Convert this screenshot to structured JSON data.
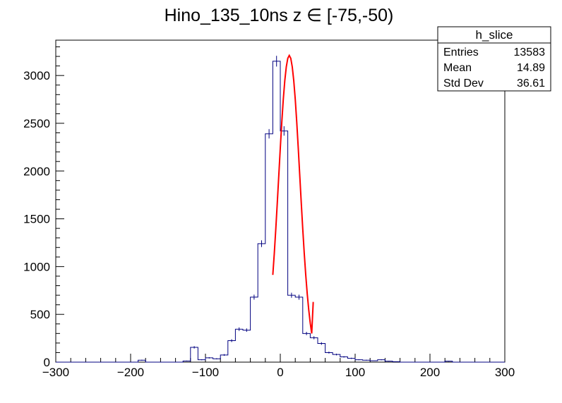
{
  "chart_data": {
    "type": "bar",
    "title": "Hino_135_10ns z  ∈ [-75,-50)",
    "xlim": [
      -300,
      300
    ],
    "ylim": [
      0,
      3370
    ],
    "x_ticks": [
      -300,
      -200,
      -100,
      0,
      100,
      200,
      300
    ],
    "y_ticks": [
      0,
      500,
      1000,
      1500,
      2000,
      2500,
      3000
    ],
    "bin_width": 10,
    "bin_edges_start": -300,
    "values": [
      0,
      0,
      0,
      0,
      0,
      0,
      0,
      0,
      0,
      0,
      0,
      20,
      0,
      0,
      0,
      0,
      0,
      12,
      155,
      25,
      45,
      35,
      75,
      225,
      345,
      335,
      680,
      1240,
      2390,
      3150,
      2420,
      700,
      680,
      300,
      255,
      195,
      100,
      80,
      55,
      40,
      25,
      20,
      15,
      25,
      10,
      5,
      0,
      0,
      0,
      0,
      0,
      0,
      10,
      0,
      0,
      0,
      0,
      0,
      0,
      0
    ],
    "fit": {
      "color": "#ff0000",
      "x": [
        -10,
        -8,
        -6,
        -4,
        -2,
        0,
        2,
        4,
        6,
        8,
        10,
        12,
        14,
        16,
        18,
        20,
        22,
        24,
        26,
        28,
        30,
        32,
        34,
        36,
        38,
        40,
        42,
        44
      ],
      "y": [
        913,
        1140,
        1395,
        1670,
        1955,
        2240,
        2510,
        2750,
        2945,
        3090,
        3180,
        3210,
        3180,
        3090,
        2945,
        2750,
        2510,
        2240,
        1955,
        1670,
        1395,
        1140,
        913,
        715,
        548,
        410,
        300,
        630
      ]
    },
    "stats": {
      "title": "h_slice",
      "rows": [
        {
          "label": "Entries",
          "value": "13583"
        },
        {
          "label": "Mean",
          "value": "14.89"
        },
        {
          "label": "Std Dev",
          "value": "36.61"
        }
      ]
    },
    "colors": {
      "histogram": "#000080",
      "fit": "#ff0000",
      "axis": "#000000"
    }
  }
}
